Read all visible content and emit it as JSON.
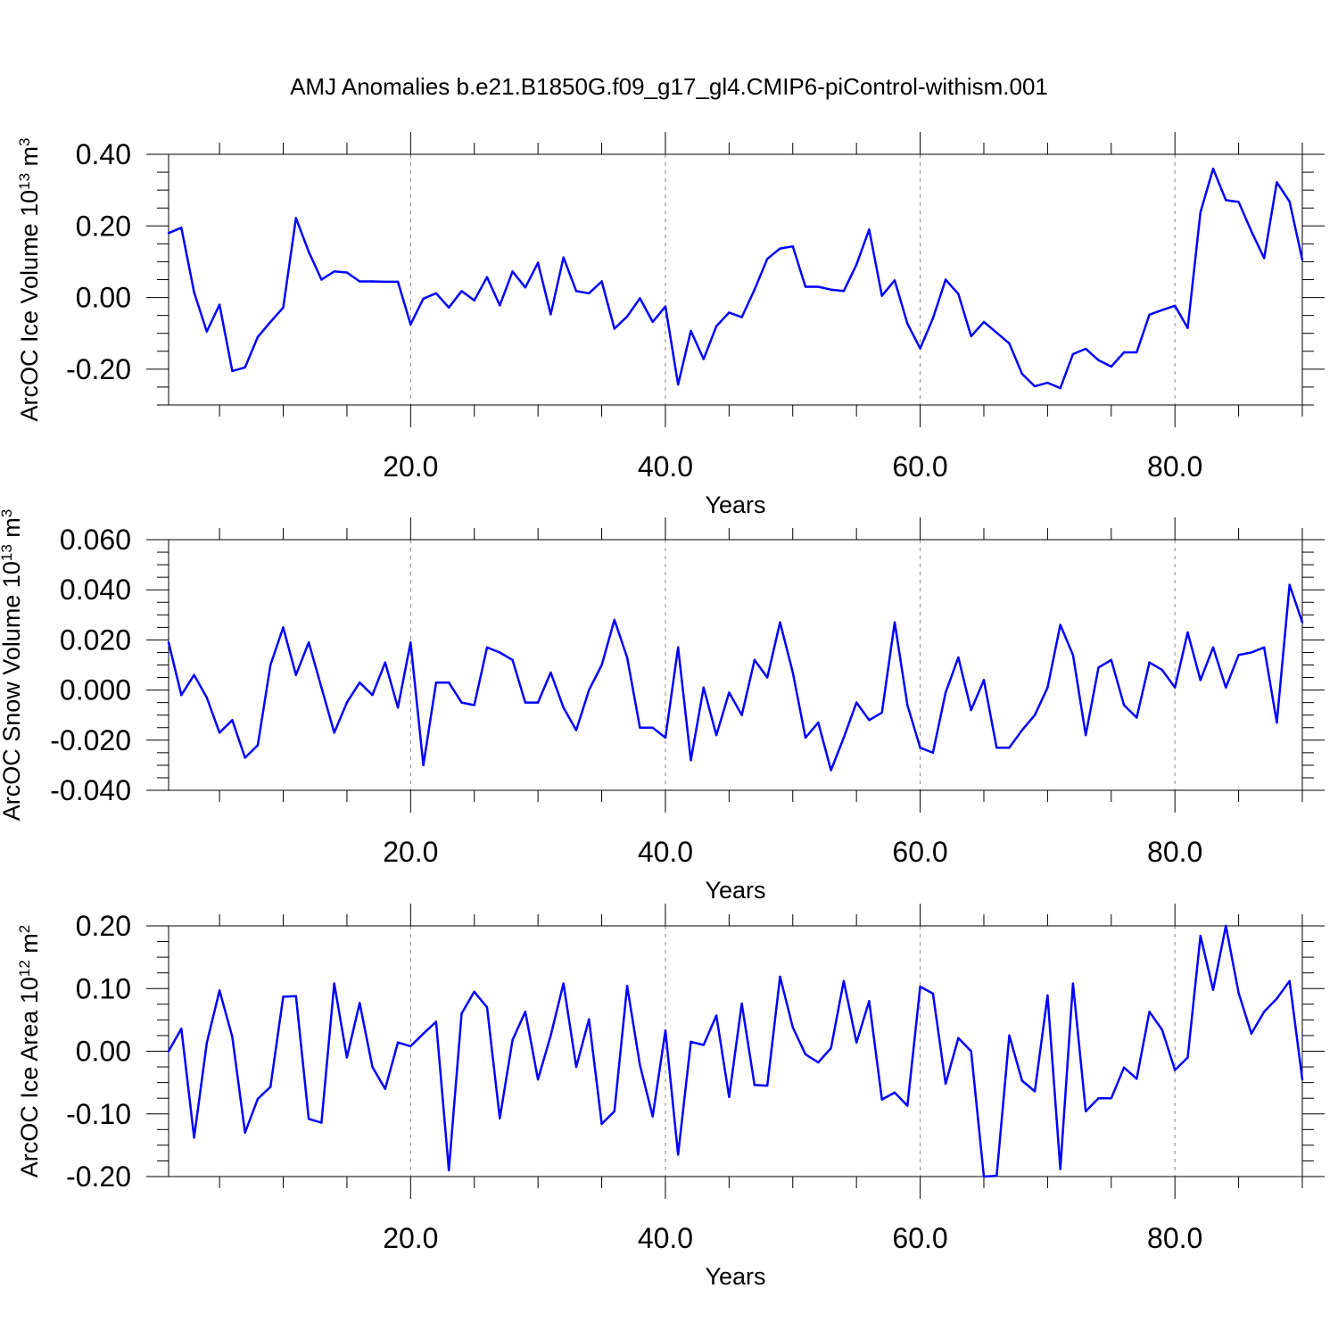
{
  "title": "AMJ Anomalies b.e21.B1850G.f09_g17_gl4.CMIP6-piControl-withism.001",
  "colors": {
    "series": "#0000ff",
    "axis": "#000000",
    "grid": "#888888"
  },
  "chart_data": [
    {
      "type": "line",
      "ylabel": "ArcOC Ice Volume 10",
      "ylabel_exp": "13",
      "ylabel_unit": "m",
      "ylabel_unit_exp": "3",
      "xlabel": "Years",
      "xlim": [
        1,
        90
      ],
      "ylim": [
        -0.3,
        0.4
      ],
      "x_ticks": [
        20,
        40,
        60,
        80
      ],
      "x_tick_labels": [
        "20.0",
        "40.0",
        "60.0",
        "80.0"
      ],
      "y_ticks": [
        -0.2,
        0.0,
        0.2,
        0.4
      ],
      "y_tick_labels": [
        "-0.20",
        "0.00",
        "0.20",
        "0.40"
      ],
      "grid": "dashed vertical at major x ticks",
      "x": [
        1,
        2,
        3,
        4,
        5,
        6,
        7,
        8,
        9,
        10,
        11,
        12,
        13,
        14,
        15,
        16,
        17,
        18,
        19,
        20,
        21,
        22,
        23,
        24,
        25,
        26,
        27,
        28,
        29,
        30,
        31,
        32,
        33,
        34,
        35,
        36,
        37,
        38,
        39,
        40,
        41,
        42,
        43,
        44,
        45,
        46,
        47,
        48,
        49,
        50,
        51,
        52,
        53,
        54,
        55,
        56,
        57,
        58,
        59,
        60,
        61,
        62,
        63,
        64,
        65,
        66,
        67,
        68,
        69,
        70,
        71,
        72,
        73,
        74,
        75,
        76,
        77,
        78,
        79,
        80,
        81,
        82,
        83,
        84,
        85,
        86,
        87,
        88,
        89,
        90
      ],
      "values": [
        0.18,
        0.195,
        0.015,
        -0.095,
        -0.02,
        -0.205,
        -0.195,
        -0.11,
        -0.068,
        -0.028,
        0.222,
        0.128,
        0.05,
        0.073,
        0.07,
        0.045,
        0.045,
        0.044,
        0.044,
        -0.075,
        -0.003,
        0.012,
        -0.028,
        0.018,
        -0.008,
        0.057,
        -0.022,
        0.073,
        0.028,
        0.097,
        -0.047,
        0.112,
        0.018,
        0.012,
        0.045,
        -0.087,
        -0.053,
        -0.002,
        -0.068,
        -0.025,
        -0.243,
        -0.093,
        -0.172,
        -0.08,
        -0.042,
        -0.055,
        0.022,
        0.108,
        0.137,
        0.143,
        0.03,
        0.03,
        0.022,
        0.018,
        0.092,
        0.19,
        0.005,
        0.048,
        -0.073,
        -0.142,
        -0.058,
        0.05,
        0.01,
        -0.108,
        -0.068,
        -0.098,
        -0.128,
        -0.213,
        -0.248,
        -0.238,
        -0.253,
        -0.158,
        -0.143,
        -0.175,
        -0.193,
        -0.153,
        -0.153,
        -0.048,
        -0.035,
        -0.023,
        -0.085,
        0.238,
        0.36,
        0.272,
        0.267,
        0.185,
        0.11,
        0.322,
        0.268,
        0.105
      ]
    },
    {
      "type": "line",
      "ylabel": "ArcOC Snow Volume 10",
      "ylabel_exp": "13",
      "ylabel_unit": "m",
      "ylabel_unit_exp": "3",
      "xlabel": "Years",
      "xlim": [
        1,
        90
      ],
      "ylim": [
        -0.04,
        0.06
      ],
      "x_ticks": [
        20,
        40,
        60,
        80
      ],
      "x_tick_labels": [
        "20.0",
        "40.0",
        "60.0",
        "80.0"
      ],
      "y_ticks": [
        -0.04,
        -0.02,
        0.0,
        0.02,
        0.04,
        0.06
      ],
      "y_tick_labels": [
        "-0.040",
        "-0.020",
        "0.000",
        "0.020",
        "0.040",
        "0.060"
      ],
      "grid": "dashed vertical at major x ticks",
      "x": [
        1,
        2,
        3,
        4,
        5,
        6,
        7,
        8,
        9,
        10,
        11,
        12,
        13,
        14,
        15,
        16,
        17,
        18,
        19,
        20,
        21,
        22,
        23,
        24,
        25,
        26,
        27,
        28,
        29,
        30,
        31,
        32,
        33,
        34,
        35,
        36,
        37,
        38,
        39,
        40,
        41,
        42,
        43,
        44,
        45,
        46,
        47,
        48,
        49,
        50,
        51,
        52,
        53,
        54,
        55,
        56,
        57,
        58,
        59,
        60,
        61,
        62,
        63,
        64,
        65,
        66,
        67,
        68,
        69,
        70,
        71,
        72,
        73,
        74,
        75,
        76,
        77,
        78,
        79,
        80,
        81,
        82,
        83,
        84,
        85,
        86,
        87,
        88,
        89,
        90
      ],
      "values": [
        0.019,
        -0.002,
        0.006,
        -0.003,
        -0.017,
        -0.012,
        -0.027,
        -0.022,
        0.01,
        0.025,
        0.006,
        0.019,
        0.001,
        -0.017,
        -0.005,
        0.003,
        -0.002,
        0.011,
        -0.007,
        0.019,
        -0.03,
        0.003,
        0.003,
        -0.005,
        -0.006,
        0.017,
        0.015,
        0.012,
        -0.005,
        -0.005,
        0.007,
        -0.007,
        -0.016,
        0.0,
        0.01,
        0.028,
        0.013,
        -0.015,
        -0.015,
        -0.019,
        0.017,
        -0.028,
        0.001,
        -0.018,
        -0.001,
        -0.01,
        0.012,
        0.005,
        0.027,
        0.007,
        -0.019,
        -0.013,
        -0.032,
        -0.019,
        -0.005,
        -0.012,
        -0.009,
        0.027,
        -0.006,
        -0.023,
        -0.025,
        -0.001,
        0.013,
        -0.008,
        0.004,
        -0.023,
        -0.023,
        -0.016,
        -0.01,
        0.001,
        0.026,
        0.014,
        -0.018,
        0.009,
        0.012,
        -0.006,
        -0.011,
        0.011,
        0.008,
        0.001,
        0.023,
        0.004,
        0.017,
        0.001,
        0.014,
        0.015,
        0.017,
        -0.013,
        0.042,
        0.027
      ]
    },
    {
      "type": "line",
      "ylabel": "ArcOC Ice Area 10",
      "ylabel_exp": "12",
      "ylabel_unit": "m",
      "ylabel_unit_exp": "2",
      "xlabel": "Years",
      "xlim": [
        1,
        90
      ],
      "ylim": [
        -0.2,
        0.2
      ],
      "x_ticks": [
        20,
        40,
        60,
        80
      ],
      "x_tick_labels": [
        "20.0",
        "40.0",
        "60.0",
        "80.0"
      ],
      "y_ticks": [
        -0.2,
        -0.1,
        0.0,
        0.1,
        0.2
      ],
      "y_tick_labels": [
        "-0.20",
        "-0.10",
        "0.00",
        "0.10",
        "0.20"
      ],
      "grid": "dashed vertical at major x ticks",
      "x": [
        1,
        2,
        3,
        4,
        5,
        6,
        7,
        8,
        9,
        10,
        11,
        12,
        13,
        14,
        15,
        16,
        17,
        18,
        19,
        20,
        21,
        22,
        23,
        24,
        25,
        26,
        27,
        28,
        29,
        30,
        31,
        32,
        33,
        34,
        35,
        36,
        37,
        38,
        39,
        40,
        41,
        42,
        43,
        44,
        45,
        46,
        47,
        48,
        49,
        50,
        51,
        52,
        53,
        54,
        55,
        56,
        57,
        58,
        59,
        60,
        61,
        62,
        63,
        64,
        65,
        66,
        67,
        68,
        69,
        70,
        71,
        72,
        73,
        74,
        75,
        76,
        77,
        78,
        79,
        80,
        81,
        82,
        83,
        84,
        85,
        86,
        87,
        88,
        89,
        90
      ],
      "values": [
        0.0,
        0.036,
        -0.138,
        0.013,
        0.097,
        0.023,
        -0.13,
        -0.076,
        -0.057,
        0.087,
        0.088,
        -0.108,
        -0.114,
        0.108,
        -0.01,
        0.077,
        -0.025,
        -0.06,
        0.014,
        0.008,
        0.028,
        0.047,
        -0.19,
        0.06,
        0.095,
        0.07,
        -0.107,
        0.018,
        0.063,
        -0.045,
        0.025,
        0.108,
        -0.025,
        0.051,
        -0.116,
        -0.096,
        0.104,
        -0.022,
        -0.104,
        0.033,
        -0.165,
        0.015,
        0.01,
        0.057,
        -0.073,
        0.076,
        -0.054,
        -0.055,
        0.119,
        0.038,
        -0.005,
        -0.018,
        0.005,
        0.112,
        0.014,
        0.08,
        -0.077,
        -0.066,
        -0.087,
        0.103,
        0.092,
        -0.052,
        0.021,
        0.0,
        -0.2,
        -0.199,
        0.025,
        -0.047,
        -0.064,
        0.089,
        -0.188,
        0.108,
        -0.096,
        -0.075,
        -0.075,
        -0.026,
        -0.044,
        0.063,
        0.034,
        -0.03,
        -0.01,
        0.184,
        0.098,
        0.2,
        0.093,
        0.028,
        0.063,
        0.084,
        0.112,
        -0.045
      ]
    }
  ]
}
